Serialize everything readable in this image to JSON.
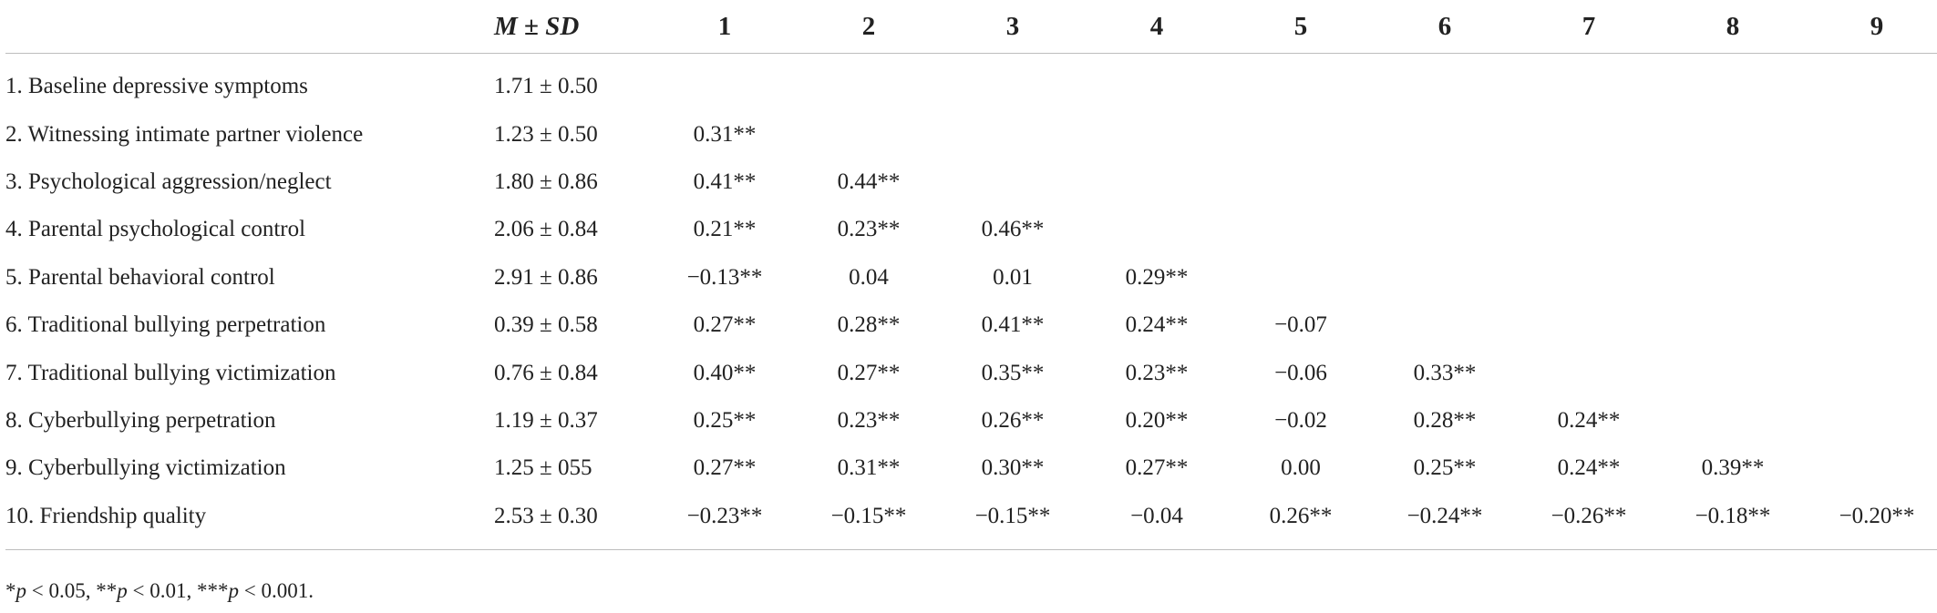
{
  "table": {
    "header": {
      "mean_sd": "M ± SD",
      "mean_sd_m": "M",
      "mean_sd_pm": " ± ",
      "mean_sd_sd": "SD",
      "columns": [
        "1",
        "2",
        "3",
        "4",
        "5",
        "6",
        "7",
        "8",
        "9"
      ]
    },
    "rows": [
      {
        "label": "1. Baseline depressive symptoms",
        "mean_sd": "1.71 ± 0.50",
        "cells": [
          "",
          "",
          "",
          "",
          "",
          "",
          "",
          "",
          ""
        ]
      },
      {
        "label": "2. Witnessing intimate partner violence",
        "mean_sd": "1.23 ± 0.50",
        "cells": [
          "0.31**",
          "",
          "",
          "",
          "",
          "",
          "",
          "",
          ""
        ]
      },
      {
        "label": "3. Psychological aggression/neglect",
        "mean_sd": "1.80 ± 0.86",
        "cells": [
          "0.41**",
          "0.44**",
          "",
          "",
          "",
          "",
          "",
          "",
          ""
        ]
      },
      {
        "label": "4. Parental psychological control",
        "mean_sd": "2.06 ± 0.84",
        "cells": [
          "0.21**",
          "0.23**",
          "0.46**",
          "",
          "",
          "",
          "",
          "",
          ""
        ]
      },
      {
        "label": "5. Parental behavioral control",
        "mean_sd": "2.91 ± 0.86",
        "cells": [
          "−0.13**",
          "0.04",
          "0.01",
          "0.29**",
          "",
          "",
          "",
          "",
          ""
        ]
      },
      {
        "label": "6. Traditional bullying perpetration",
        "mean_sd": "0.39 ± 0.58",
        "cells": [
          "0.27**",
          "0.28**",
          "0.41**",
          "0.24**",
          "−0.07",
          "",
          "",
          "",
          ""
        ]
      },
      {
        "label": "7. Traditional bullying victimization",
        "mean_sd": "0.76 ± 0.84",
        "cells": [
          "0.40**",
          "0.27**",
          "0.35**",
          "0.23**",
          "−0.06",
          "0.33**",
          "",
          "",
          ""
        ]
      },
      {
        "label": "8. Cyberbullying perpetration",
        "mean_sd": "1.19 ± 0.37",
        "cells": [
          "0.25**",
          "0.23**",
          "0.26**",
          "0.20**",
          "−0.02",
          "0.28**",
          "0.24**",
          "",
          ""
        ]
      },
      {
        "label": "9. Cyberbullying victimization",
        "mean_sd": "1.25 ± 055",
        "cells": [
          "0.27**",
          "0.31**",
          "0.30**",
          "0.27**",
          "0.00",
          "0.25**",
          "0.24**",
          "0.39**",
          ""
        ]
      },
      {
        "label": "10. Friendship quality",
        "mean_sd": "2.53 ± 0.30",
        "cells": [
          "−0.23**",
          "−0.15**",
          "−0.15**",
          "−0.04",
          "0.26**",
          "−0.24**",
          "−0.26**",
          "−0.18**",
          "−0.20**"
        ]
      }
    ]
  },
  "footnote": "*p < 0.05, **p < 0.01, ***p < 0.001."
}
